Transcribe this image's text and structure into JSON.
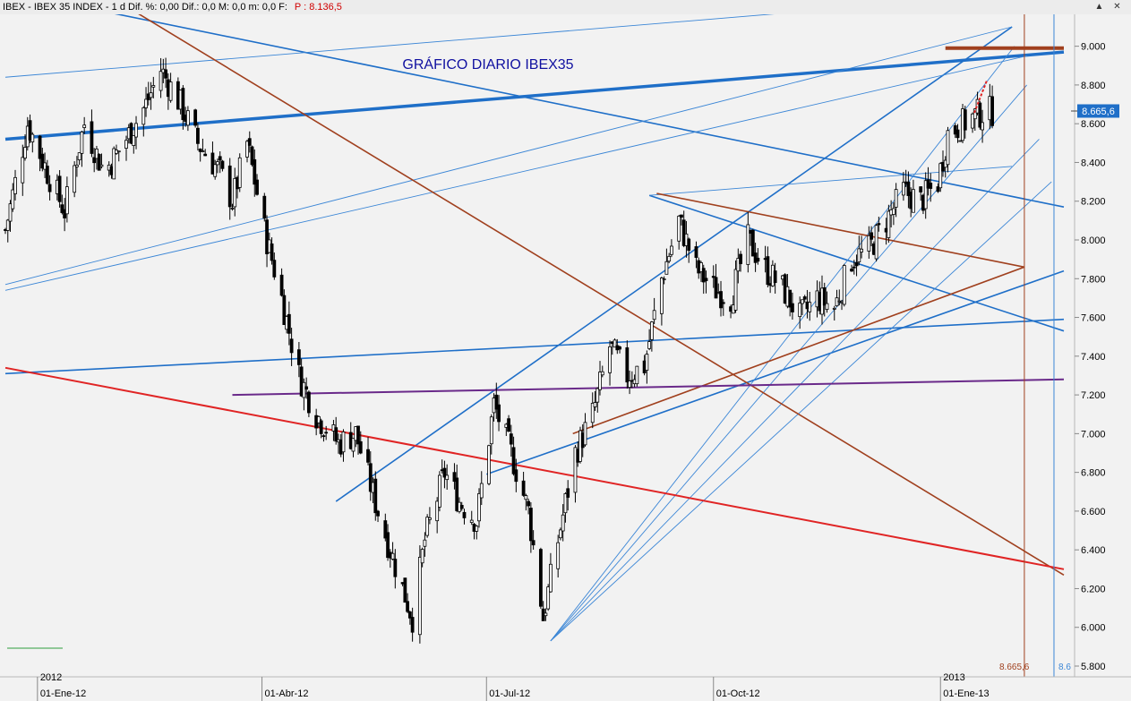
{
  "window": {
    "title": "IBEX - IBEX 35 INDEX - 1 d Dif. %: 0,00  Dif.: 0,0  M: 0,0  m: 0,0  F:",
    "price_label": "P : 8.136,5",
    "minimize_icon": "▲",
    "close_icon": "✕"
  },
  "colors": {
    "background": "#f2f2f2",
    "blue_trend": "#1f6fc8",
    "thin_blue": "#3b86d6",
    "brown_trend": "#a0401e",
    "red_trend": "#e02424",
    "purple_trend": "#6a2a8a",
    "candles": "#000000",
    "price_marker": "#1f6fc8"
  },
  "chart_data": {
    "type": "candlestick",
    "title": "GRÁFICO DIARIO IBEX35",
    "y_axis": {
      "position": "right",
      "ticks": [
        "9.000",
        "8.800",
        "8.600",
        "8.400",
        "8.200",
        "8.000",
        "7.800",
        "7.600",
        "7.400",
        "7.200",
        "7.000",
        "6.800",
        "6.600",
        "6.400",
        "6.200",
        "6.000",
        "5.800"
      ],
      "range": [
        5800,
        9100
      ]
    },
    "x_axis": {
      "year_labels": [
        "2012",
        "2013"
      ],
      "ticks": [
        "01-Ene-12",
        "01-Abr-12",
        "01-Jul-12",
        "01-Oct-12",
        "01-Ene-13"
      ]
    },
    "last_price_label": "8.665,6",
    "last_price": 8665.6,
    "bottom_marker_label": "8.665,6",
    "bottom_marker_label_blue": "8.6",
    "price_path": [
      {
        "date": "2011-12-19",
        "close": 8050
      },
      {
        "date": "2011-12-28",
        "close": 8600
      },
      {
        "date": "2012-01-05",
        "close": 8350
      },
      {
        "date": "2012-01-12",
        "close": 8150
      },
      {
        "date": "2012-01-20",
        "close": 8600
      },
      {
        "date": "2012-01-28",
        "close": 8350
      },
      {
        "date": "2012-02-05",
        "close": 8500
      },
      {
        "date": "2012-02-14",
        "close": 8700
      },
      {
        "date": "2012-02-20",
        "close": 8880
      },
      {
        "date": "2012-02-28",
        "close": 8700
      },
      {
        "date": "2012-03-06",
        "close": 8500
      },
      {
        "date": "2012-03-15",
        "close": 8350
      },
      {
        "date": "2012-03-20",
        "close": 8200
      },
      {
        "date": "2012-03-26",
        "close": 8500
      },
      {
        "date": "2012-04-02",
        "close": 8050
      },
      {
        "date": "2012-04-09",
        "close": 7700
      },
      {
        "date": "2012-04-16",
        "close": 7300
      },
      {
        "date": "2012-04-23",
        "close": 7100
      },
      {
        "date": "2012-05-02",
        "close": 6950
      },
      {
        "date": "2012-05-09",
        "close": 7000
      },
      {
        "date": "2012-05-18",
        "close": 6600
      },
      {
        "date": "2012-05-28",
        "close": 6200
      },
      {
        "date": "2012-06-01",
        "close": 6050
      },
      {
        "date": "2012-06-06",
        "close": 6450
      },
      {
        "date": "2012-06-14",
        "close": 6800
      },
      {
        "date": "2012-06-20",
        "close": 6650
      },
      {
        "date": "2012-06-27",
        "close": 6550
      },
      {
        "date": "2012-07-04",
        "close": 7150
      },
      {
        "date": "2012-07-11",
        "close": 6900
      },
      {
        "date": "2012-07-18",
        "close": 6600
      },
      {
        "date": "2012-07-24",
        "close": 6050
      },
      {
        "date": "2012-07-30",
        "close": 6450
      },
      {
        "date": "2012-08-06",
        "close": 6900
      },
      {
        "date": "2012-08-13",
        "close": 7100
      },
      {
        "date": "2012-08-20",
        "close": 7450
      },
      {
        "date": "2012-08-27",
        "close": 7300
      },
      {
        "date": "2012-09-03",
        "close": 7350
      },
      {
        "date": "2012-09-10",
        "close": 7800
      },
      {
        "date": "2012-09-17",
        "close": 8100
      },
      {
        "date": "2012-09-24",
        "close": 7850
      },
      {
        "date": "2012-10-01",
        "close": 7750
      },
      {
        "date": "2012-10-08",
        "close": 7700
      },
      {
        "date": "2012-10-15",
        "close": 8000
      },
      {
        "date": "2012-10-22",
        "close": 7850
      },
      {
        "date": "2012-10-29",
        "close": 7750
      },
      {
        "date": "2012-11-05",
        "close": 7600
      },
      {
        "date": "2012-11-12",
        "close": 7700
      },
      {
        "date": "2012-11-19",
        "close": 7650
      },
      {
        "date": "2012-11-26",
        "close": 7900
      },
      {
        "date": "2012-12-03",
        "close": 7950
      },
      {
        "date": "2012-12-10",
        "close": 8100
      },
      {
        "date": "2012-12-17",
        "close": 8250
      },
      {
        "date": "2012-12-24",
        "close": 8200
      },
      {
        "date": "2012-12-31",
        "close": 8300
      },
      {
        "date": "2013-01-04",
        "close": 8550
      },
      {
        "date": "2013-01-10",
        "close": 8600
      },
      {
        "date": "2013-01-16",
        "close": 8650
      },
      {
        "date": "2013-01-22",
        "close": 8665.6
      }
    ],
    "trend_lines": [
      {
        "color": "blue_trend",
        "width": 3.5,
        "from": {
          "date": "2011-12-19",
          "value": 8520
        },
        "to": {
          "date": "2013-02-20",
          "value": 8970
        }
      },
      {
        "color": "blue_trend",
        "width": 1.6,
        "from": {
          "date": "2011-12-28",
          "value": 9260
        },
        "to": {
          "date": "2013-02-20",
          "value": 8170
        }
      },
      {
        "color": "blue_trend",
        "width": 1.6,
        "from": {
          "date": "2012-05-01",
          "value": 6650
        },
        "to": {
          "date": "2013-01-30",
          "value": 9100
        }
      },
      {
        "color": "blue_trend",
        "width": 1.6,
        "from": {
          "date": "2012-07-01",
          "value": 6790
        },
        "to": {
          "date": "2013-02-20",
          "value": 7840
        }
      },
      {
        "color": "blue_trend",
        "width": 1.6,
        "from": {
          "date": "2011-12-19",
          "value": 7310
        },
        "to": {
          "date": "2013-02-20",
          "value": 7590
        }
      },
      {
        "color": "blue_trend",
        "width": 1.6,
        "from": {
          "date": "2012-09-05",
          "value": 8230
        },
        "to": {
          "date": "2013-02-20",
          "value": 7530
        }
      },
      {
        "color": "thin_blue",
        "width": 0.9,
        "from": {
          "date": "2011-12-19",
          "value": 8840
        },
        "to": {
          "date": "2012-12-25",
          "value": 9230
        }
      },
      {
        "color": "thin_blue",
        "width": 0.9,
        "from": {
          "date": "2011-12-19",
          "value": 7770
        },
        "to": {
          "date": "2013-01-30",
          "value": 9100
        }
      },
      {
        "color": "thin_blue",
        "width": 0.9,
        "from": {
          "date": "2011-12-19",
          "value": 7740
        },
        "to": {
          "date": "2013-02-05",
          "value": 8950
        }
      },
      {
        "color": "thin_blue",
        "width": 0.9,
        "from": {
          "date": "2012-07-27",
          "value": 5930
        },
        "to": {
          "date": "2013-01-31",
          "value": 9000
        }
      },
      {
        "color": "thin_blue",
        "width": 0.9,
        "from": {
          "date": "2012-07-27",
          "value": 5930
        },
        "to": {
          "date": "2013-02-05",
          "value": 8800
        }
      },
      {
        "color": "thin_blue",
        "width": 0.9,
        "from": {
          "date": "2012-07-27",
          "value": 5930
        },
        "to": {
          "date": "2013-02-10",
          "value": 8520
        }
      },
      {
        "color": "thin_blue",
        "width": 0.9,
        "from": {
          "date": "2012-07-27",
          "value": 5930
        },
        "to": {
          "date": "2013-02-15",
          "value": 8300
        }
      },
      {
        "color": "thin_blue",
        "width": 0.9,
        "from": {
          "date": "2012-09-05",
          "value": 8230
        },
        "to": {
          "date": "2013-01-30",
          "value": 8380
        }
      },
      {
        "color": "brown_trend",
        "width": 1.6,
        "from": {
          "date": "2012-01-30",
          "value": 9260
        },
        "to": {
          "date": "2013-02-20",
          "value": 6270
        }
      },
      {
        "color": "brown_trend",
        "width": 1.6,
        "from": {
          "date": "2012-09-08",
          "value": 8240
        },
        "to": {
          "date": "2013-02-04",
          "value": 7860
        }
      },
      {
        "color": "brown_trend",
        "width": 1.6,
        "from": {
          "date": "2012-08-05",
          "value": 7000
        },
        "to": {
          "date": "2013-02-04",
          "value": 7860
        }
      },
      {
        "color": "brown_trend",
        "width": 4,
        "from": {
          "date": "2013-01-03",
          "value": 8990
        },
        "to": {
          "date": "2013-02-20",
          "value": 8990
        }
      },
      {
        "color": "red_trend",
        "width": 2,
        "from": {
          "date": "2011-12-19",
          "value": 7340
        },
        "to": {
          "date": "2013-02-20",
          "value": 6300
        }
      },
      {
        "color": "purple_trend",
        "width": 2,
        "from": {
          "date": "2012-03-20",
          "value": 7200
        },
        "to": {
          "date": "2013-02-20",
          "value": 7280
        }
      }
    ],
    "vertical_markers": [
      {
        "color": "brown_trend",
        "date": "2013-02-04"
      },
      {
        "color": "thin_blue",
        "date": "2013-02-16"
      }
    ],
    "grid": false,
    "legend": "none"
  }
}
